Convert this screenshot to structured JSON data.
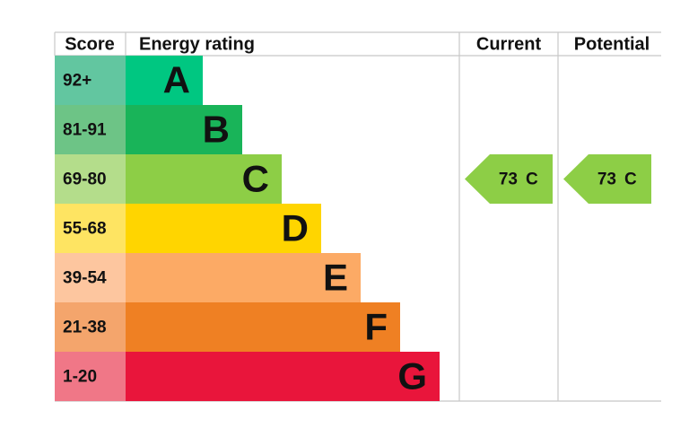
{
  "header": {
    "score": "Score",
    "rating": "Energy rating",
    "current": "Current",
    "potential": "Potential"
  },
  "bands": [
    {
      "score": "92+",
      "letter": "A",
      "color": "#00c781",
      "score_color": "#62c6a0"
    },
    {
      "score": "81-91",
      "letter": "B",
      "color": "#19b459",
      "score_color": "#6dc486"
    },
    {
      "score": "69-80",
      "letter": "C",
      "color": "#8dce46",
      "score_color": "#b4dd8b"
    },
    {
      "score": "55-68",
      "letter": "D",
      "color": "#ffd500",
      "score_color": "#fee462"
    },
    {
      "score": "39-54",
      "letter": "E",
      "color": "#fcaa65",
      "score_color": "#fdc69f"
    },
    {
      "score": "21-38",
      "letter": "F",
      "color": "#ef8023",
      "score_color": "#f4a56c"
    },
    {
      "score": "1-20",
      "letter": "G",
      "color": "#e9153b",
      "score_color": "#f07787"
    }
  ],
  "current": {
    "score": 73,
    "letter": "C"
  },
  "potential": {
    "score": 73,
    "letter": "C"
  }
}
